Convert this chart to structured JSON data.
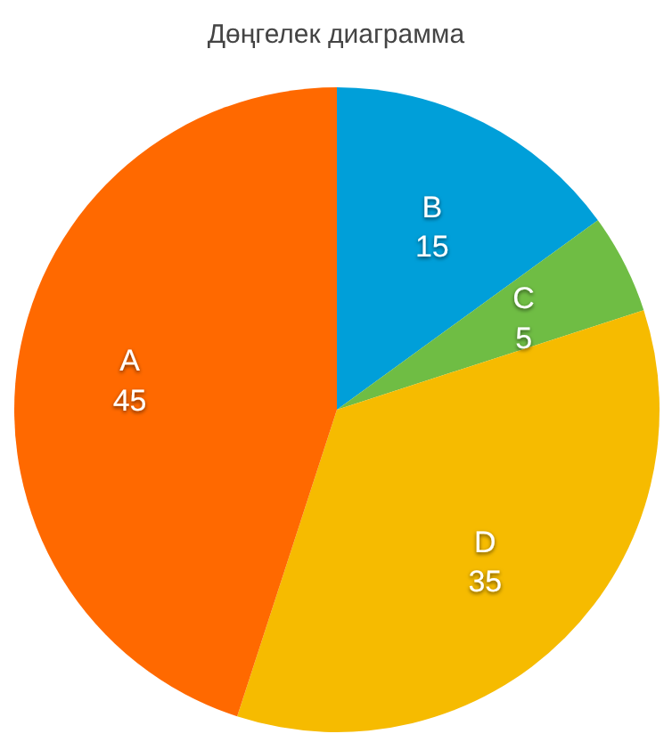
{
  "chart_data": {
    "type": "pie",
    "title": "Дөңгелек диаграмма",
    "categories": [
      "B",
      "C",
      "D",
      "A"
    ],
    "values": [
      15,
      5,
      35,
      45
    ],
    "colors": [
      "#009fd9",
      "#6fbd44",
      "#f6bb00",
      "#ff6900"
    ],
    "data_labels": true
  }
}
